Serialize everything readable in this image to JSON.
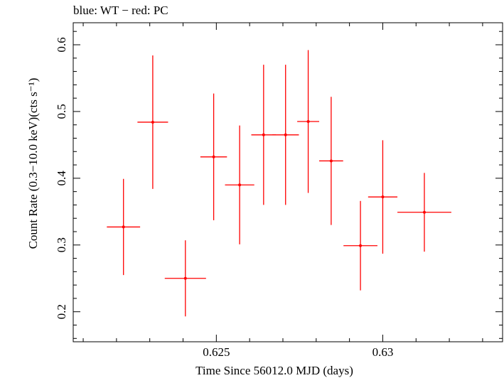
{
  "chart_data": {
    "type": "scatter",
    "title": "blue: WT − red: PC",
    "xlabel": "Time Since 56012.0 MJD (days)",
    "ylabel": "Count Rate (0.3−10.0 keV)(cts s⁻¹)",
    "xlim": [
      0.6207,
      0.6336
    ],
    "ylim": [
      0.155,
      0.633
    ],
    "x_ticks": [
      0.625,
      0.63
    ],
    "x_tick_labels": [
      "0.625",
      "0.63"
    ],
    "y_ticks": [
      0.2,
      0.3,
      0.4,
      0.5,
      0.6
    ],
    "y_tick_labels": [
      "0.2",
      "0.3",
      "0.4",
      "0.5",
      "0.6"
    ],
    "grid": false,
    "series": [
      {
        "color": "#ff0000",
        "marker": "dot-with-errorbars",
        "points": [
          {
            "x": 0.62221,
            "xerr": 0.0005,
            "y": 0.327,
            "yerr": 0.072
          },
          {
            "x": 0.62309,
            "xerr": 0.00046,
            "y": 0.484,
            "yerr": 0.1
          },
          {
            "x": 0.62407,
            "xerr": 0.00062,
            "y": 0.25,
            "yerr": 0.057
          },
          {
            "x": 0.62492,
            "xerr": 0.0004,
            "y": 0.432,
            "yerr": 0.095
          },
          {
            "x": 0.6257,
            "xerr": 0.00044,
            "y": 0.39,
            "yerr": 0.089
          },
          {
            "x": 0.62642,
            "xerr": 0.00037,
            "y": 0.465,
            "yerr": 0.105
          },
          {
            "x": 0.62708,
            "xerr": 0.0004,
            "y": 0.465,
            "yerr": 0.105
          },
          {
            "x": 0.62776,
            "xerr": 0.00033,
            "y": 0.485,
            "yerr": 0.107
          },
          {
            "x": 0.62845,
            "xerr": 0.00036,
            "y": 0.426,
            "yerr": 0.096
          },
          {
            "x": 0.62933,
            "xerr": 0.00051,
            "y": 0.299,
            "yerr": 0.067
          },
          {
            "x": 0.63,
            "xerr": 0.00044,
            "y": 0.372,
            "yerr": 0.085
          },
          {
            "x": 0.63125,
            "xerr": 0.00081,
            "y": 0.349,
            "yerr": 0.059
          }
        ]
      }
    ]
  }
}
